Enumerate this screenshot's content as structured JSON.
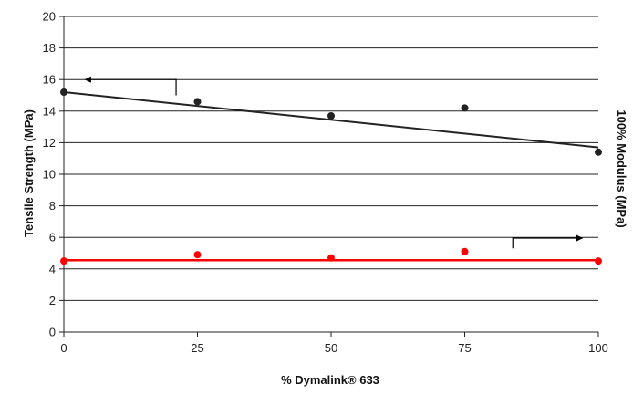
{
  "chart_data": {
    "type": "scatter",
    "title": "",
    "xlabel": "% Dymalink® 633",
    "ylabel": "Tensile Strength (MPa)",
    "y2label": "100% Modulus (MPa)",
    "xlim": [
      0,
      100
    ],
    "ylim": [
      0,
      20
    ],
    "x_ticks": [
      0,
      25,
      50,
      75,
      100
    ],
    "y_ticks": [
      0,
      2,
      4,
      6,
      8,
      10,
      12,
      14,
      16,
      18,
      20
    ],
    "grid": "horizontal",
    "series": [
      {
        "color": "#222222",
        "axis": "left",
        "points": [
          [
            0,
            15.2
          ],
          [
            25,
            14.6
          ],
          [
            50,
            13.7
          ],
          [
            75,
            14.2
          ],
          [
            100,
            11.4
          ]
        ],
        "trendline": [
          [
            0,
            15.2
          ],
          [
            100,
            11.7
          ]
        ]
      },
      {
        "color": "#ff0000",
        "axis": "right",
        "points": [
          [
            0,
            4.5
          ],
          [
            25,
            4.9
          ],
          [
            50,
            4.7
          ],
          [
            75,
            5.1
          ],
          [
            100,
            4.5
          ]
        ],
        "trendline": [
          [
            0,
            4.55
          ],
          [
            100,
            4.55
          ]
        ]
      }
    ],
    "annotations": [
      {
        "type": "arrow",
        "direction": "left",
        "points_to": "left-axis",
        "from": [
          21,
          15
        ],
        "corner": [
          21,
          16
        ],
        "to": [
          4,
          16
        ]
      },
      {
        "type": "arrow",
        "direction": "right",
        "points_to": "right-axis",
        "from": [
          84,
          5.3
        ],
        "corner": [
          84,
          5.95
        ],
        "to": [
          97,
          5.95
        ]
      }
    ]
  }
}
